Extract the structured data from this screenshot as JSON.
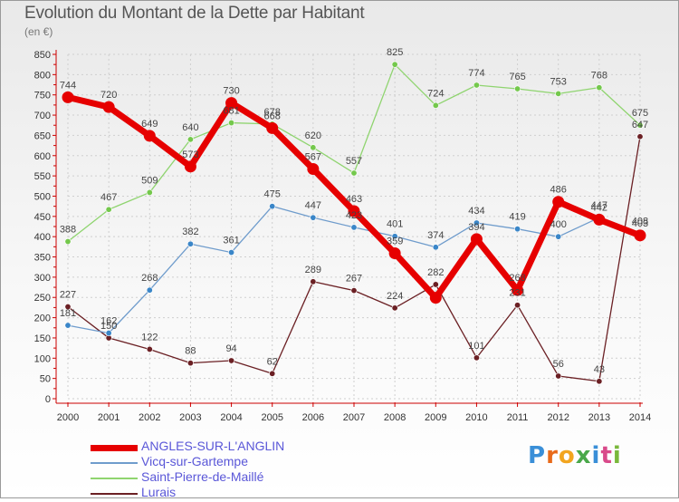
{
  "title": "Evolution du Montant de la Dette par Habitant",
  "subtitle": "(en €)",
  "brand": {
    "name": "Proxiti",
    "letters": [
      "P",
      "r",
      "o",
      "x",
      "i",
      "t",
      "i"
    ],
    "colors": [
      "#3a8fd8",
      "#e86a1a",
      "#f2a51f",
      "#4aa84a",
      "#3a8fd8",
      "#d94a8a",
      "#7ab83c"
    ]
  },
  "chart_data": {
    "type": "line",
    "ylim": [
      0,
      850
    ],
    "yticks": [
      "0",
      "50",
      "100",
      "150",
      "200",
      "250",
      "300",
      "350",
      "400",
      "450",
      "500",
      "550",
      "600",
      "650",
      "700",
      "750",
      "800",
      "850"
    ],
    "x": [
      "2000",
      "2001",
      "2002",
      "2003",
      "2004",
      "2005",
      "2006",
      "2007",
      "2008",
      "2009",
      "2010",
      "2011",
      "2012",
      "2013",
      "2014"
    ],
    "grid": true,
    "legend_position": "bottom-left",
    "series": [
      {
        "name": "ANGLES-SUR-L'ANGLIN",
        "color": "#e60000",
        "values": [
          744,
          720,
          649,
          573,
          730,
          668,
          567,
          463,
          359,
          249,
          394,
          268,
          486,
          442,
          403
        ]
      },
      {
        "name": "Vicq-sur-Gartempe",
        "color": "#6f9ccc",
        "values": [
          181,
          162,
          268,
          382,
          361,
          475,
          447,
          423,
          401,
          374,
          434,
          419,
          400,
          447,
          408
        ]
      },
      {
        "name": "Saint-Pierre-de-Maillé",
        "color": "#8fd46f",
        "values": [
          388,
          467,
          509,
          640,
          681,
          678,
          620,
          557,
          825,
          724,
          774,
          765,
          753,
          768,
          675
        ]
      },
      {
        "name": "Lurais",
        "color": "#6b2024",
        "values": [
          227,
          150,
          122,
          88,
          94,
          62,
          289,
          267,
          224,
          282,
          101,
          231,
          56,
          43,
          647
        ]
      }
    ],
    "labels": [
      [
        "744",
        "720",
        "649",
        "573",
        "730",
        "668",
        "567",
        "463",
        "359",
        "",
        "394",
        "268",
        "486",
        "442",
        "403"
      ],
      [
        "181",
        "162",
        "268",
        "382",
        "361",
        "475",
        "447",
        "423",
        "401",
        "374",
        "434",
        "419",
        "400",
        "447",
        "408"
      ],
      [
        "388",
        "467",
        "509",
        "640",
        "681",
        "678",
        "620",
        "557",
        "825",
        "724",
        "774",
        "765",
        "753",
        "768",
        "675"
      ],
      [
        "227",
        "150",
        "122",
        "88",
        "94",
        "62",
        "289",
        "267",
        "224",
        "282",
        "101",
        "231",
        "56",
        "43",
        "647"
      ]
    ]
  }
}
